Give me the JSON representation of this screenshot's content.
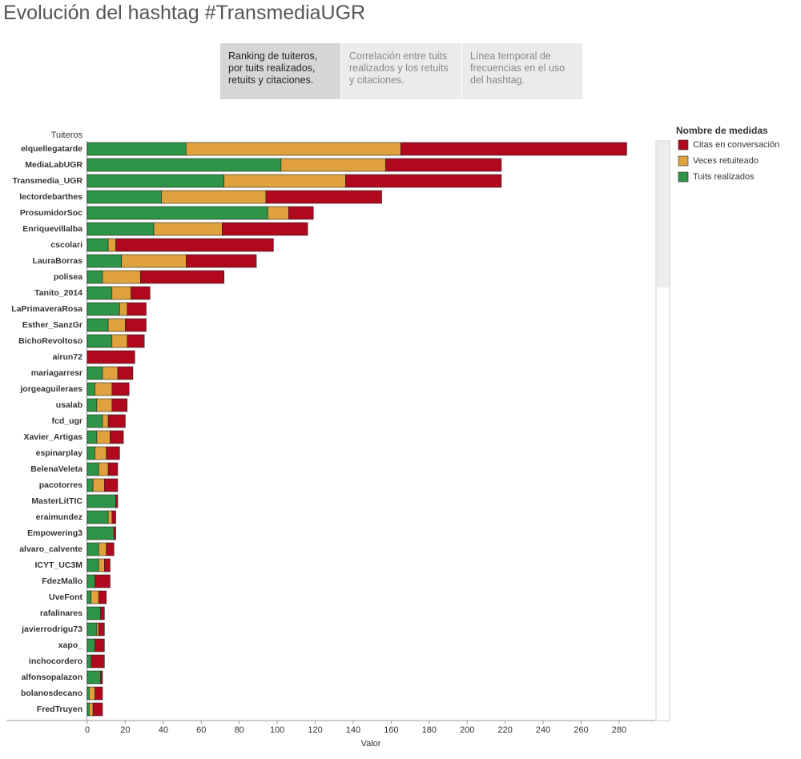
{
  "header": {
    "title": "Evolución del hashtag #TransmediaUGR"
  },
  "tabs": [
    "Ranking de tuiteros, por tuits realizados, retuits y citaciones.",
    "Correlación entre tuits realizados y los retuits y citaciones.",
    "Línea temporal de frecuencias en el uso del hashtag."
  ],
  "chart_data": {
    "type": "bar",
    "orientation": "horizontal",
    "stacked": true,
    "y_label": "Tuiteros",
    "x_label": "Valor",
    "legend_title": "Nombre de medidas",
    "categories": [
      "elquellegatarde",
      "MediaLabUGR",
      "Transmedia_UGR",
      "lectordebarthes",
      "ProsumidorSoc",
      "Enriquevillalba",
      "cscolari",
      "LauraBorras",
      "polisea",
      "Tanito_2014",
      "LaPrimaveraRosa",
      "Esther_SanzGr",
      "BichoRevoltoso",
      "airun72",
      "mariagarresr",
      "jorgeaguileraes",
      "usalab",
      "fcd_ugr",
      "Xavier_Artigas",
      "espinarplay",
      "BelenaVeleta",
      "pacotorres",
      "MasterLitTIC",
      "eraimundez",
      "Empowering3",
      "alvaro_calvente",
      "ICYT_UC3M",
      "FdezMallo",
      "UveFont",
      "rafalinares",
      "javierrodrigu73",
      "xapo_",
      "inchocordero",
      "alfonsopalazon",
      "bolanosdecano",
      "FredTruyen"
    ],
    "series": [
      {
        "name": "Tuits realizados",
        "color": "#2e9447",
        "values": [
          52,
          102,
          72,
          39,
          95,
          35,
          11,
          18,
          8,
          13,
          17,
          11,
          13,
          0,
          8,
          4,
          5,
          8,
          5,
          4,
          6,
          3,
          15,
          11,
          14,
          6,
          6,
          4,
          2,
          7,
          5,
          4,
          2,
          7,
          1,
          1
        ]
      },
      {
        "name": "Veces retuiteado",
        "color": "#e0a23c",
        "values": [
          113,
          55,
          64,
          55,
          11,
          36,
          4,
          34,
          20,
          10,
          4,
          9,
          8,
          0,
          8,
          9,
          8,
          3,
          7,
          6,
          5,
          6,
          0,
          2,
          0,
          4,
          3,
          0,
          4,
          0,
          1,
          0,
          0,
          0,
          3,
          2
        ]
      },
      {
        "name": "Citas en conversación",
        "color": "#b0091e",
        "values": [
          119,
          61,
          82,
          61,
          13,
          45,
          83,
          37,
          44,
          10,
          10,
          11,
          9,
          25,
          8,
          9,
          8,
          9,
          7,
          7,
          5,
          7,
          1,
          2,
          1,
          4,
          3,
          8,
          4,
          2,
          3,
          5,
          7,
          1,
          4,
          5
        ]
      }
    ],
    "xlim": [
      0,
      299
    ],
    "xticks": [
      0,
      20,
      40,
      60,
      80,
      100,
      120,
      140,
      160,
      180,
      200,
      220,
      240,
      260,
      280
    ]
  }
}
